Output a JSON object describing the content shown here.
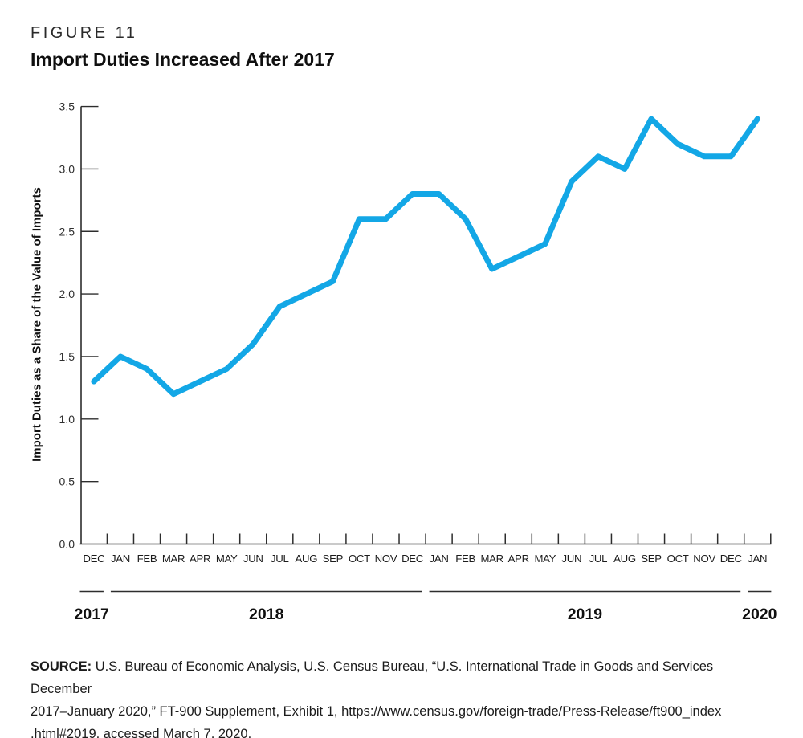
{
  "figure": {
    "label": "FIGURE 11",
    "title": "Import Duties Increased After 2017"
  },
  "chart_data": {
    "type": "line",
    "title": "Import Duties Increased After 2017",
    "xlabel": "",
    "ylabel": "Import Duties as a Share of the Value of Imports",
    "ylim": [
      0.0,
      3.5
    ],
    "ytick_step": 0.5,
    "ytick_labels": [
      "0.5",
      "1.0",
      "1.5",
      "2.0",
      "2.5",
      "3.0",
      "3.5"
    ],
    "grid": false,
    "legend_position": "none",
    "x": [
      "DEC",
      "JAN",
      "FEB",
      "MAR",
      "APR",
      "MAY",
      "JUN",
      "JUL",
      "AUG",
      "SEP",
      "OCT",
      "NOV",
      "DEC",
      "JAN",
      "FEB",
      "MAR",
      "APR",
      "MAY",
      "JUN",
      "JUL",
      "AUG",
      "SEP",
      "OCT",
      "NOV",
      "DEC",
      "JAN"
    ],
    "years": [
      {
        "label": "2017",
        "from": 0,
        "to": 0
      },
      {
        "label": "2018",
        "from": 1,
        "to": 12
      },
      {
        "label": "2019",
        "from": 13,
        "to": 24
      },
      {
        "label": "2020",
        "from": 25,
        "to": 25
      }
    ],
    "series": [
      {
        "name": "Import duties as a share of the value of imports",
        "color": "#13A7E6",
        "values": [
          1.3,
          1.5,
          1.4,
          1.2,
          1.3,
          1.4,
          1.6,
          1.9,
          2.0,
          2.1,
          2.6,
          2.6,
          2.8,
          2.8,
          2.6,
          2.2,
          2.3,
          2.4,
          2.9,
          3.1,
          3.0,
          3.4,
          3.2,
          3.1,
          3.1,
          3.4
        ]
      }
    ],
    "style": {
      "axis_color": "#2d2d2d",
      "tick_label_color": "#2f2f2f",
      "month_label_color": "#1c1c1c",
      "year_label_color": "#0f0f0f"
    }
  },
  "source": {
    "label": "SOURCE:",
    "lines": [
      "U.S. Bureau of Economic Analysis, U.S. Census Bureau, “U.S. International Trade in Goods and Services December",
      "2017–January 2020,” FT-900 Supplement, Exhibit 1, https://www.census.gov/foreign-trade/Press-Release/ft900_index",
      ".html#2019, accessed March 7, 2020."
    ]
  }
}
